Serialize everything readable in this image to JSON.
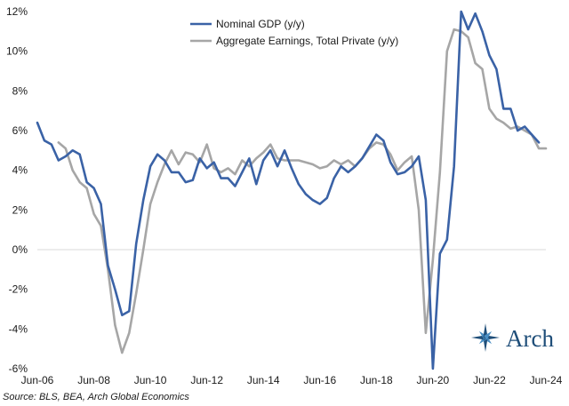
{
  "chart_data": {
    "type": "line",
    "title": "",
    "xlabel": "",
    "ylabel": "",
    "ylim": [
      -6,
      12
    ],
    "yticks": [
      -6,
      -4,
      -2,
      0,
      2,
      4,
      6,
      8,
      10,
      12
    ],
    "ytick_labels": [
      "-6%",
      "-4%",
      "-2%",
      "0%",
      "2%",
      "4%",
      "6%",
      "8%",
      "10%",
      "12%"
    ],
    "xlim": [
      2006.42,
      2024.42
    ],
    "xtick_values": [
      2006.42,
      2008.42,
      2010.42,
      2012.42,
      2014.42,
      2016.42,
      2018.42,
      2020.42,
      2022.42,
      2024.42
    ],
    "xtick_labels": [
      "Jun-06",
      "Jun-08",
      "Jun-10",
      "Jun-12",
      "Jun-14",
      "Jun-16",
      "Jun-18",
      "Jun-20",
      "Jun-22",
      "Jun-24"
    ],
    "legend_position": "top-center",
    "series": [
      {
        "name": "Nominal GDP (y/y)",
        "color": "#3a62a6",
        "x": [
          2006.42,
          2006.67,
          2006.92,
          2007.17,
          2007.42,
          2007.67,
          2007.92,
          2008.17,
          2008.42,
          2008.67,
          2008.92,
          2009.17,
          2009.42,
          2009.67,
          2009.92,
          2010.17,
          2010.42,
          2010.67,
          2010.92,
          2011.17,
          2011.42,
          2011.67,
          2011.92,
          2012.17,
          2012.42,
          2012.67,
          2012.92,
          2013.17,
          2013.42,
          2013.67,
          2013.92,
          2014.17,
          2014.42,
          2014.67,
          2014.92,
          2015.17,
          2015.42,
          2015.67,
          2015.92,
          2016.17,
          2016.42,
          2016.67,
          2016.92,
          2017.17,
          2017.42,
          2017.67,
          2017.92,
          2018.17,
          2018.42,
          2018.67,
          2018.92,
          2019.17,
          2019.42,
          2019.67,
          2019.92,
          2020.17,
          2020.42,
          2020.67,
          2020.92,
          2021.17,
          2021.42,
          2021.67,
          2021.92,
          2022.17,
          2022.42,
          2022.67,
          2022.92,
          2023.17,
          2023.42,
          2023.67,
          2023.92,
          2024.17
        ],
        "values": [
          6.4,
          5.5,
          5.3,
          4.5,
          4.7,
          5.0,
          4.8,
          3.4,
          3.1,
          2.3,
          -0.8,
          -2.0,
          -3.3,
          -3.1,
          0.3,
          2.5,
          4.2,
          4.8,
          4.5,
          3.9,
          3.9,
          3.4,
          3.5,
          4.6,
          4.1,
          4.4,
          3.6,
          3.6,
          3.2,
          3.9,
          4.6,
          3.3,
          4.5,
          5.0,
          4.2,
          5.0,
          4.1,
          3.3,
          2.8,
          2.5,
          2.3,
          2.6,
          3.6,
          4.2,
          3.9,
          4.2,
          4.6,
          5.2,
          5.8,
          5.5,
          4.4,
          3.8,
          3.9,
          4.2,
          4.7,
          2.5,
          -6.0,
          -0.2,
          0.5,
          4.2,
          12.2,
          11.1,
          11.9,
          11.0,
          9.8,
          9.1,
          7.1,
          7.1,
          6.0,
          6.2,
          5.8,
          5.4
        ]
      },
      {
        "name": "Aggregate Earnings, Total Private (y/y)",
        "color": "#a6a6a6",
        "x": [
          2007.17,
          2007.42,
          2007.67,
          2007.92,
          2008.17,
          2008.42,
          2008.67,
          2008.92,
          2009.17,
          2009.42,
          2009.67,
          2009.92,
          2010.17,
          2010.42,
          2010.67,
          2010.92,
          2011.17,
          2011.42,
          2011.67,
          2011.92,
          2012.17,
          2012.42,
          2012.67,
          2012.92,
          2013.17,
          2013.42,
          2013.67,
          2013.92,
          2014.17,
          2014.42,
          2014.67,
          2014.92,
          2015.17,
          2015.42,
          2015.67,
          2015.92,
          2016.17,
          2016.42,
          2016.67,
          2016.92,
          2017.17,
          2017.42,
          2017.67,
          2017.92,
          2018.17,
          2018.42,
          2018.67,
          2018.92,
          2019.17,
          2019.42,
          2019.67,
          2019.92,
          2020.17,
          2020.42,
          2020.67,
          2020.92,
          2021.17,
          2021.42,
          2021.67,
          2021.92,
          2022.17,
          2022.42,
          2022.67,
          2022.92,
          2023.17,
          2023.42,
          2023.67,
          2023.92,
          2024.17,
          2024.42
        ],
        "values": [
          5.4,
          5.1,
          4.0,
          3.4,
          3.1,
          1.8,
          1.2,
          -1.0,
          -3.8,
          -5.2,
          -4.2,
          -2.2,
          0.0,
          2.3,
          3.4,
          4.3,
          5.0,
          4.3,
          4.9,
          4.8,
          4.4,
          5.3,
          4.1,
          3.9,
          4.1,
          3.8,
          4.5,
          4.2,
          4.6,
          4.9,
          5.3,
          4.6,
          4.5,
          4.5,
          4.5,
          4.4,
          4.3,
          4.1,
          4.2,
          4.5,
          4.3,
          4.5,
          4.2,
          4.6,
          5.1,
          5.4,
          5.3,
          4.8,
          4.0,
          4.4,
          4.7,
          2.0,
          -4.2,
          -0.5,
          3.9,
          10.0,
          11.1,
          11.0,
          10.7,
          9.4,
          9.1,
          7.1,
          6.6,
          6.4,
          6.1,
          6.2,
          6.0,
          5.8,
          5.1,
          5.1
        ]
      }
    ]
  },
  "source_text": "Source: BLS, BEA, Arch Global Economics",
  "logo": {
    "text": "Arch",
    "color": "#1f4e79"
  }
}
